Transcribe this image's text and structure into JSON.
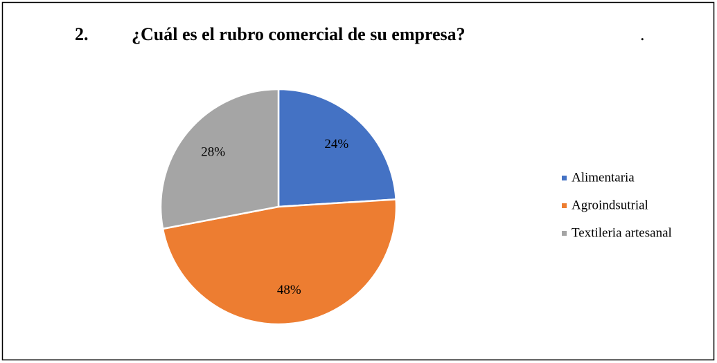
{
  "chart_data": {
    "type": "pie",
    "number": "2.",
    "title": "¿Cuál es el rubro comercial de su empresa?",
    "annotation": ".",
    "categories": [
      "Alimentaria",
      "Agroindsutrial",
      "Textileria artesanal"
    ],
    "values": [
      24,
      48,
      28
    ],
    "value_labels": [
      "24%",
      "48%",
      "28%"
    ],
    "colors": [
      "#4472c4",
      "#ed7d31",
      "#a5a5a5"
    ],
    "legend": "right"
  }
}
